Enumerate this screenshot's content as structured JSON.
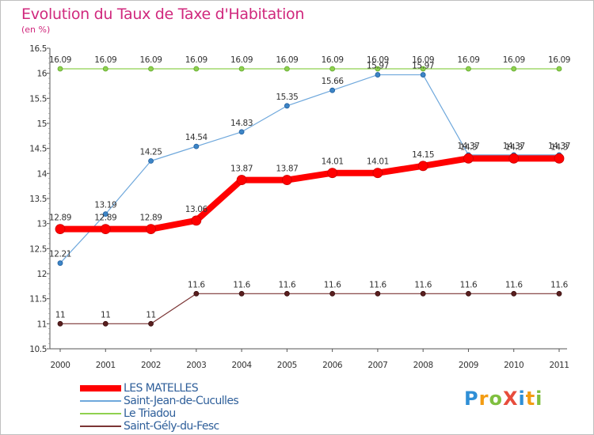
{
  "title": "Evolution du Taux de Taxe d'Habitation",
  "subtitle": "(en %)",
  "logo": {
    "text": "ProXiti",
    "letters": [
      {
        "ch": "P",
        "color": "#2f8fd6"
      },
      {
        "ch": "r",
        "color": "#f39c12"
      },
      {
        "ch": "o",
        "color": "#7fbf3f"
      },
      {
        "ch": "X",
        "color": "#e74c3c"
      },
      {
        "ch": "i",
        "color": "#2f8fd6"
      },
      {
        "ch": "t",
        "color": "#f39c12"
      },
      {
        "ch": "i",
        "color": "#7fbf3f"
      }
    ]
  },
  "chart_data": {
    "type": "line",
    "title": "Evolution du Taux de Taxe d'Habitation",
    "subtitle": "(en %)",
    "xlabel": "",
    "ylabel": "",
    "x": [
      "2000",
      "2001",
      "2002",
      "2003",
      "2004",
      "2005",
      "2006",
      "2007",
      "2008",
      "2009",
      "2010",
      "2011"
    ],
    "ylim": [
      10.5,
      16.5
    ],
    "yticks": [
      "10.5",
      "11",
      "11.5",
      "12",
      "12.5",
      "13",
      "13.5",
      "14",
      "14.5",
      "15",
      "15.5",
      "16",
      "16.5"
    ],
    "grid": false,
    "legend_position": "bottom-left",
    "series": [
      {
        "name": "LES MATELLES",
        "color": "#ff0000",
        "values": [
          12.89,
          12.89,
          12.89,
          13.06,
          13.87,
          13.87,
          14.01,
          14.01,
          14.15,
          14.3,
          14.3,
          14.3
        ],
        "labels": [
          "12.89",
          "12.89",
          "12.89",
          "13.06",
          "13.87",
          "13.87",
          "14.01",
          "14.01",
          "14.15",
          "14.3",
          "14.3",
          "14.3"
        ]
      },
      {
        "name": "Saint-Jean-de-Cuculles",
        "color": "#6fa8dc",
        "values": [
          12.21,
          13.19,
          14.25,
          14.54,
          14.83,
          15.35,
          15.66,
          15.97,
          15.97,
          14.37,
          14.37,
          14.37
        ],
        "labels": [
          "12.21",
          "13.19",
          "14.25",
          "14.54",
          "14.83",
          "15.35",
          "15.66",
          "15.97",
          "15.97",
          "14.37",
          "14.37",
          "14.37"
        ]
      },
      {
        "name": "Le Triadou",
        "color": "#8fd14f",
        "values": [
          16.09,
          16.09,
          16.09,
          16.09,
          16.09,
          16.09,
          16.09,
          16.09,
          16.09,
          16.09,
          16.09,
          16.09
        ],
        "labels": [
          "16.09",
          "16.09",
          "16.09",
          "16.09",
          "16.09",
          "16.09",
          "16.09",
          "16.09",
          "16.09",
          "16.09",
          "16.09",
          "16.09"
        ]
      },
      {
        "name": "Saint-Gély-du-Fesc",
        "color": "#7b3535",
        "values": [
          11,
          11,
          11,
          11.6,
          11.6,
          11.6,
          11.6,
          11.6,
          11.6,
          11.6,
          11.6,
          11.6
        ],
        "labels": [
          "11",
          "11",
          "11",
          "11.6",
          "11.6",
          "11.6",
          "11.6",
          "11.6",
          "11.6",
          "11.6",
          "11.6",
          "11.6"
        ]
      }
    ]
  }
}
